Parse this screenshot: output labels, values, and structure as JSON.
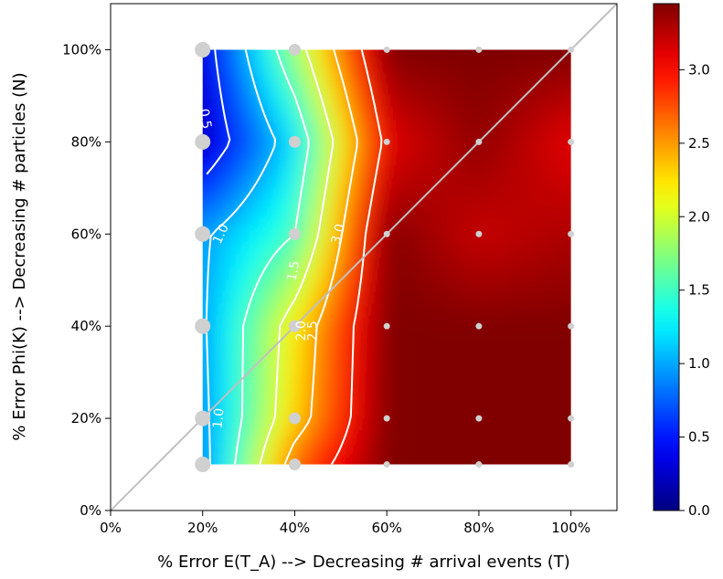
{
  "chart_data": {
    "type": "heatmap",
    "xlabel": "% Error E(T_A) --> Decreasing # arrival events (T)",
    "ylabel": "% Error Phi(K) --> Decreasing # particles (N)",
    "xlim": [
      0,
      110
    ],
    "ylim": [
      0,
      110
    ],
    "x_ticks": [
      0,
      20,
      40,
      60,
      80,
      100
    ],
    "x_tick_labels": [
      "0%",
      "20%",
      "40%",
      "60%",
      "80%",
      "100%"
    ],
    "y_ticks": [
      0,
      20,
      40,
      60,
      80,
      100
    ],
    "y_tick_labels": [
      "0%",
      "20%",
      "40%",
      "60%",
      "80%",
      "100%"
    ],
    "x": [
      20,
      40,
      60,
      80,
      100
    ],
    "y": [
      10,
      20,
      40,
      60,
      80,
      100
    ],
    "z": [
      [
        0.85,
        2.7,
        3.45,
        3.45,
        3.45
      ],
      [
        0.9,
        2.3,
        3.45,
        3.45,
        3.45
      ],
      [
        0.95,
        2.2,
        3.45,
        3.45,
        3.45
      ],
      [
        0.95,
        1.5,
        3.45,
        3.2,
        3.3
      ],
      [
        0.2,
        1.2,
        3.1,
        3.4,
        3.1
      ],
      [
        0.3,
        1.8,
        3.45,
        3.45,
        3.45
      ]
    ],
    "contour_labels": [
      {
        "text": "0.5",
        "x": 20.5,
        "y": 85,
        "angle": 80
      },
      {
        "text": "1.0",
        "x": 24,
        "y": 60,
        "angle": -65
      },
      {
        "text": "1.0",
        "x": 23.5,
        "y": 20,
        "angle": -85
      },
      {
        "text": "1.5",
        "x": 39.8,
        "y": 52,
        "angle": -80
      },
      {
        "text": "2.0",
        "x": 41.5,
        "y": 39,
        "angle": -90
      },
      {
        "text": "2.5",
        "x": 44,
        "y": 39,
        "angle": -90
      },
      {
        "text": "3.0",
        "x": 49.5,
        "y": 60,
        "angle": -75
      }
    ],
    "reference_line": {
      "from": [
        0,
        0
      ],
      "to": [
        110,
        110
      ],
      "color": "#c0c0c0"
    },
    "colorbar": {
      "min": 0,
      "max": 3.45,
      "ticks": [
        0.0,
        0.5,
        1.0,
        1.5,
        2.0,
        2.5,
        3.0
      ],
      "tick_labels": [
        "0.0",
        "0.5",
        "1.0",
        "1.5",
        "2.0",
        "2.5",
        "3.0"
      ],
      "colormap": "jet"
    }
  }
}
